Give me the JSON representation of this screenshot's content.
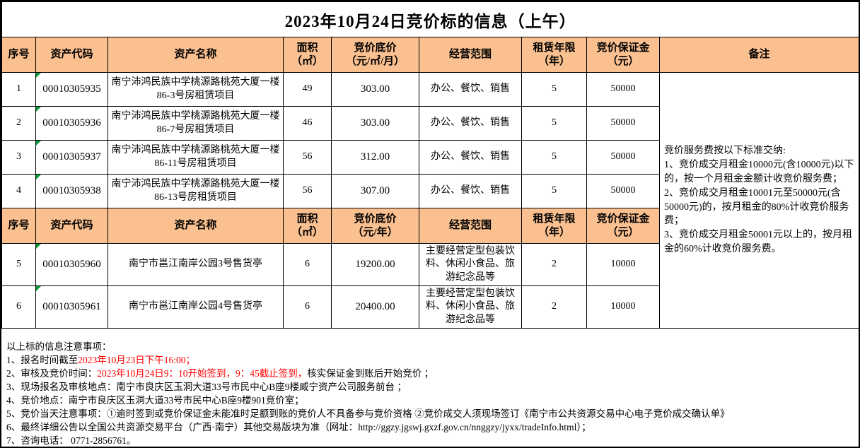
{
  "title": "2023年10月24日竞价标的信息（上午）",
  "colors": {
    "header_bg": "#FAC090",
    "red_text": "#FF0000",
    "flag_green": "#009933",
    "border": "#000000"
  },
  "table1": {
    "headers": [
      "序号",
      "资产代码",
      "资产名称",
      "面积\n（㎡）",
      "竞价底价\n（元/㎡/月）",
      "经营范围",
      "租赁年限\n（年）",
      "竞价保证金\n（元）",
      "备注"
    ],
    "rows": [
      [
        "1",
        "00010305935",
        "南宁沛鸿民族中学桃源路桃苑大厦一楼86-3号房租赁项目",
        "49",
        "303.00",
        "办公、餐饮、销售",
        "5",
        "50000"
      ],
      [
        "2",
        "00010305936",
        "南宁沛鸿民族中学桃源路桃苑大厦一楼86-7号房租赁项目",
        "46",
        "303.00",
        "办公、餐饮、销售",
        "5",
        "50000"
      ],
      [
        "3",
        "00010305937",
        "南宁沛鸿民族中学桃源路桃苑大厦一楼86-11号房租赁项目",
        "56",
        "312.00",
        "办公、餐饮、销售",
        "5",
        "50000"
      ],
      [
        "4",
        "00010305938",
        "南宁沛鸿民族中学桃源路桃苑大厦一楼86-13号房租赁项目",
        "56",
        "307.00",
        "办公、餐饮、销售",
        "5",
        "50000"
      ]
    ]
  },
  "table2": {
    "headers": [
      "序号",
      "资产代码",
      "资产名称",
      "面积\n（㎡）",
      "竞价底价\n（元/年）",
      "经营范围",
      "租赁年限\n（年）",
      "竞价保证金\n（元）"
    ],
    "rows": [
      [
        "5",
        "00010305960",
        "南宁市邕江南岸公园3号售货亭",
        "6",
        "19200.00",
        "主要经营定型包装饮料、休闲小食品、旅游纪念品等",
        "2",
        "10000"
      ],
      [
        "6",
        "00010305961",
        "南宁市邕江南岸公园4号售货亭",
        "6",
        "20400.00",
        "主要经营定型包装饮料、休闲小食品、旅游纪念品等",
        "2",
        "10000"
      ]
    ]
  },
  "remark": {
    "text": "竞价服务费按以下标准交纳:\n1、竞价成交月租金10000元(含10000元)以下的，按一个月租金金额计收竞价服务费；\n2、竞价成交月租金10001元至50000元(含50000元)的，按月租金的80%计收竞价服务费；\n3、竞价成交月租金50001元以上的，按月租金的60%计收竞价服务费。"
  },
  "notes": {
    "heading": "以上标的信息注意事项：",
    "items": [
      [
        {
          "text": "1、报名时间截至",
          "color": "black"
        },
        {
          "text": "2023年10月23日下午16:00；",
          "color": "red"
        }
      ],
      [
        {
          "text": "2、审核及竞价时间：",
          "color": "black"
        },
        {
          "text": "2023年10月24日9：10开始签到，9：45截止签到，",
          "color": "red"
        },
        {
          "text": "核实保证金到账后开始竞价 ；",
          "color": "black"
        }
      ],
      [
        {
          "text": "3、现场报名及审核地点：南宁市良庆区玉洞大道33号市民中心B座9楼威宁资产公司服务前台 ；",
          "color": "black"
        }
      ],
      [
        {
          "text": "4、竞价地点：南宁市良庆区玉洞大道33号市民中心B座9楼901竞价室；",
          "color": "black"
        }
      ],
      [
        {
          "text": "5、竞价当天注意事项：①逾时签到或竞价保证金未能准时足额到账的竞价人不具备参与竞价资格 ②竞价成交人须现场签订《南宁市公共资源交易中心电子竞价成交确认单》",
          "color": "black"
        }
      ],
      [
        {
          "text": "6、最终详细公告以全国公共资源交易平台（广西·南宁）其他交易版块为准（网址：http://ggzy.jgswj.gxzf.gov.cn/nnggzy/jyxx/tradeInfo.html）；",
          "color": "black"
        }
      ],
      [
        {
          "text": "7、咨询电话： 0771-2856761。",
          "color": "black"
        }
      ]
    ]
  }
}
